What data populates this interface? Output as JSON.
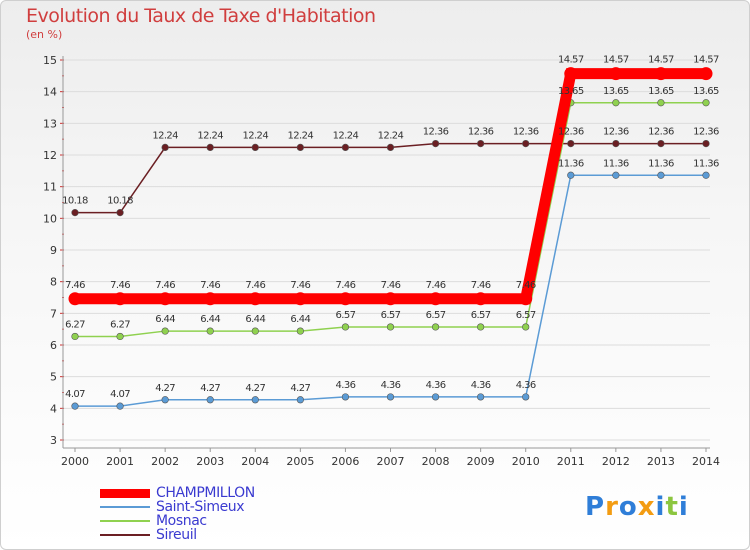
{
  "chart_data": {
    "type": "line",
    "title": "Evolution du Taux de Taxe d'Habitation",
    "ylabel": "(en %)",
    "ylim": [
      3,
      15
    ],
    "yticks": [
      3,
      4,
      5,
      6,
      7,
      8,
      9,
      10,
      11,
      12,
      13,
      14,
      15
    ],
    "categories": [
      "2000",
      "2001",
      "2002",
      "2003",
      "2004",
      "2005",
      "2006",
      "2007",
      "2008",
      "2009",
      "2010",
      "2011",
      "2012",
      "2013",
      "2014"
    ],
    "legend_position": "bottom-left",
    "series": [
      {
        "name": "CHAMPMILLON",
        "color": "#ff0000",
        "values": [
          7.46,
          7.46,
          7.46,
          7.46,
          7.46,
          7.46,
          7.46,
          7.46,
          7.46,
          7.46,
          7.46,
          14.57,
          14.57,
          14.57,
          14.57
        ],
        "labels": [
          "7.46",
          "7.46",
          "7.46",
          "7.46",
          "7.46",
          "7.46",
          "7.46",
          "7.46",
          "7.46",
          "7.46",
          "7.46",
          "14.57",
          "14.57",
          "14.57",
          "14.57"
        ]
      },
      {
        "name": "Saint-Simeux",
        "color": "#5b9bd5",
        "values": [
          4.07,
          4.07,
          4.27,
          4.27,
          4.27,
          4.27,
          4.36,
          4.36,
          4.36,
          4.36,
          4.36,
          11.36,
          11.36,
          11.36,
          11.36
        ],
        "labels": [
          "4.07",
          "4.07",
          "4.27",
          "4.27",
          "4.27",
          "4.27",
          "4.36",
          "4.36",
          "4.36",
          "4.36",
          "4.36",
          "11.36",
          "11.36",
          "11.36",
          "11.36"
        ]
      },
      {
        "name": "Mosnac",
        "color": "#8fd14f",
        "values": [
          6.27,
          6.27,
          6.44,
          6.44,
          6.44,
          6.44,
          6.57,
          6.57,
          6.57,
          6.57,
          6.57,
          13.65,
          13.65,
          13.65,
          13.65
        ],
        "labels": [
          "6.27",
          "6.27",
          "6.44",
          "6.44",
          "6.44",
          "6.44",
          "6.57",
          "6.57",
          "6.57",
          "6.57",
          "6.57",
          "13.65",
          "13.65",
          "13.65",
          "13.65"
        ]
      },
      {
        "name": "Sireuil",
        "color": "#6b1f23",
        "values": [
          10.18,
          10.18,
          12.24,
          12.24,
          12.24,
          12.24,
          12.24,
          12.24,
          12.36,
          12.36,
          12.36,
          12.36,
          12.36,
          12.36,
          12.36
        ],
        "labels": [
          "10.18",
          "10.18",
          "12.24",
          "12.24",
          "12.24",
          "12.24",
          "12.24",
          "12.24",
          "12.36",
          "12.36",
          "12.36",
          "12.36",
          "12.36",
          "12.36",
          "12.36"
        ]
      }
    ]
  },
  "logo": {
    "letters": [
      "P",
      "r",
      "o",
      "x",
      "i",
      "t",
      "i"
    ],
    "colors": [
      "#2f7ed8",
      "#f39c12",
      "#2f7ed8",
      "#f39c12",
      "#2f7ed8",
      "#8cc63f",
      "#2f7ed8"
    ]
  }
}
